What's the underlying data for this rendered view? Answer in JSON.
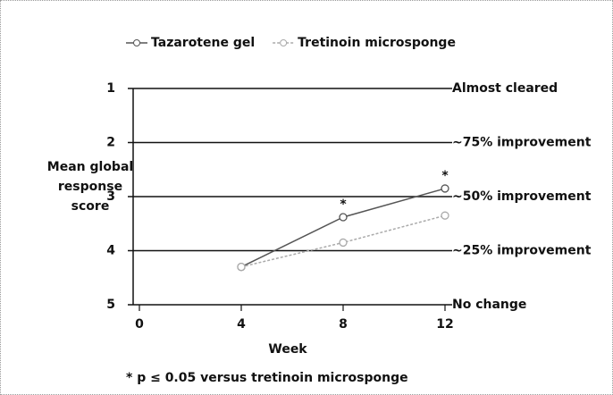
{
  "chart_data": {
    "type": "line",
    "x_label": "Week",
    "y_label": "Mean global response score",
    "x": [
      4,
      8,
      12
    ],
    "series": [
      {
        "name": "Tazarotene gel",
        "color": "#555555",
        "values": [
          4.3,
          3.38,
          2.85
        ]
      },
      {
        "name": "Tretinoin microsponge",
        "color": "#aaaaaa",
        "values": [
          4.3,
          3.85,
          3.35
        ]
      }
    ],
    "xlim": [
      0,
      12
    ],
    "xticks": [
      0,
      4,
      8,
      12
    ],
    "ylim": [
      5,
      1
    ],
    "yticks": [
      1,
      2,
      3,
      4,
      5
    ],
    "y2lim": [
      5,
      1
    ],
    "y2ticks": [
      {
        "value": 1,
        "label": "Almost cleared"
      },
      {
        "value": 2,
        "label": "~75% improvement"
      },
      {
        "value": 3,
        "label": "~50% improvement"
      },
      {
        "value": 4,
        "label": "~25% improvement"
      },
      {
        "value": 5,
        "label": "No change"
      }
    ],
    "annotations": [
      {
        "text": "*",
        "x": 8
      },
      {
        "text": "*",
        "x": 12
      }
    ],
    "footnote": "* p ≤ 0.05 versus tretinoin microsponge",
    "grid": true,
    "legend": "top"
  }
}
